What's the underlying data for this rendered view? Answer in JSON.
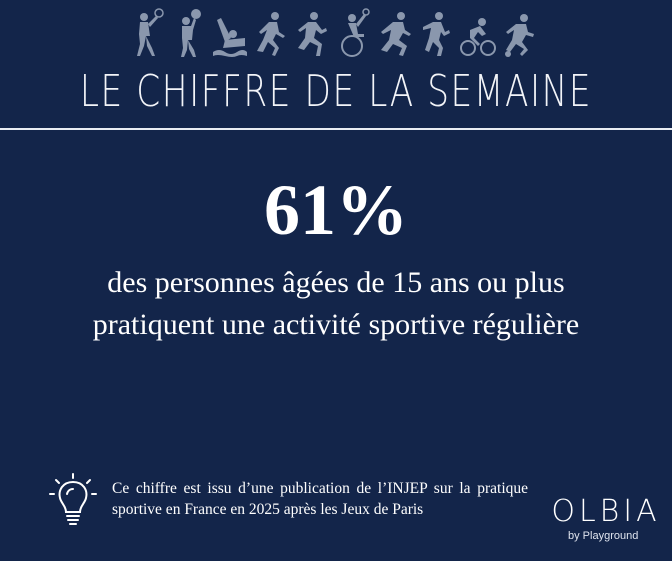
{
  "header": {
    "title": "LE CHIFFRE DE LA SEMAINE",
    "sport_icons": [
      "tennis-player-icon",
      "volleyball-player-icon",
      "swimmer-icon",
      "runner-icon",
      "runner-icon",
      "wheelchair-tennis-icon",
      "runner-icon",
      "runner-icon",
      "cyclist-icon",
      "footballer-icon"
    ]
  },
  "main": {
    "statistic": "61%",
    "description": "des personnes âgées de 15 ans ou plus pratiquent une activité sportive régulière"
  },
  "footer": {
    "note": "Ce chiffre est issu d’une publication de l’INJEP sur la pratique sportive en France en 2025 après les Jeux de Paris",
    "logo_word": "OLBIA",
    "logo_sub": "by Playground"
  },
  "colors": {
    "background": "#13254a",
    "text": "#ffffff",
    "icon": "#8a97ad"
  }
}
